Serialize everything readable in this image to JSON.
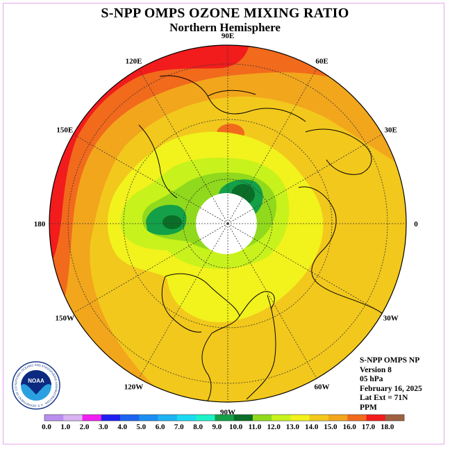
{
  "title": "S-NPP OMPS OZONE MIXING RATIO",
  "subtitle": "Northern Hemisphere",
  "longitude_labels": [
    {
      "text": "90E",
      "angle": 0
    },
    {
      "text": "60E",
      "angle": 30
    },
    {
      "text": "30E",
      "angle": 60
    },
    {
      "text": "0",
      "angle": 90
    },
    {
      "text": "30W",
      "angle": 120
    },
    {
      "text": "60W",
      "angle": 150
    },
    {
      "text": "90W",
      "angle": 180
    },
    {
      "text": "120W",
      "angle": 210
    },
    {
      "text": "150W",
      "angle": 240
    },
    {
      "text": "180",
      "angle": 270
    },
    {
      "text": "150E",
      "angle": 300
    },
    {
      "text": "120E",
      "angle": 330
    }
  ],
  "info": {
    "line1": "S-NPP OMPS NP",
    "line2": "Version 8",
    "line3": "05 hPa",
    "line4": "February 16, 2025",
    "line5": "Lat Ext = 71N",
    "line6": "PPM"
  },
  "logo": {
    "text": "NOAA",
    "ring_text": "NATIONAL OCEANIC AND ATMOSPHERIC ADMINISTRATION · U.S. DEPARTMENT OF COMMERCE"
  },
  "colorbar": {
    "labels": [
      "0.0",
      "1.0",
      "2.0",
      "3.0",
      "4.0",
      "5.0",
      "6.0",
      "7.0",
      "8.0",
      "9.0",
      "10.0",
      "11.0",
      "12.0",
      "13.0",
      "14.0",
      "15.0",
      "16.0",
      "17.0",
      "18.0"
    ],
    "colors": [
      "#b98ef0",
      "#d9b3f2",
      "#f21ff2",
      "#1f1ff2",
      "#1c63f2",
      "#1c8ef2",
      "#1cb4f2",
      "#1cd9f2",
      "#1cf2c7",
      "#13a048",
      "#0a6e28",
      "#90d91c",
      "#c8f21c",
      "#f2f21c",
      "#f2c81c",
      "#f2a61c",
      "#f26a1c",
      "#f21c1c",
      "#9e6040"
    ]
  },
  "colors": {
    "ozone_16_17": "#f21c1c",
    "ozone_15_16": "#f26a1c",
    "ozone_14_15": "#f2a61c",
    "ozone_13_14": "#f2c81c",
    "ozone_12_13": "#f2f21c",
    "ozone_11_12": "#c8f21c",
    "ozone_10_11": "#90d91c",
    "ozone_9_10": "#13a048",
    "ozone_8_9": "#0a6e28",
    "frame_border": "#e6a6e6"
  }
}
